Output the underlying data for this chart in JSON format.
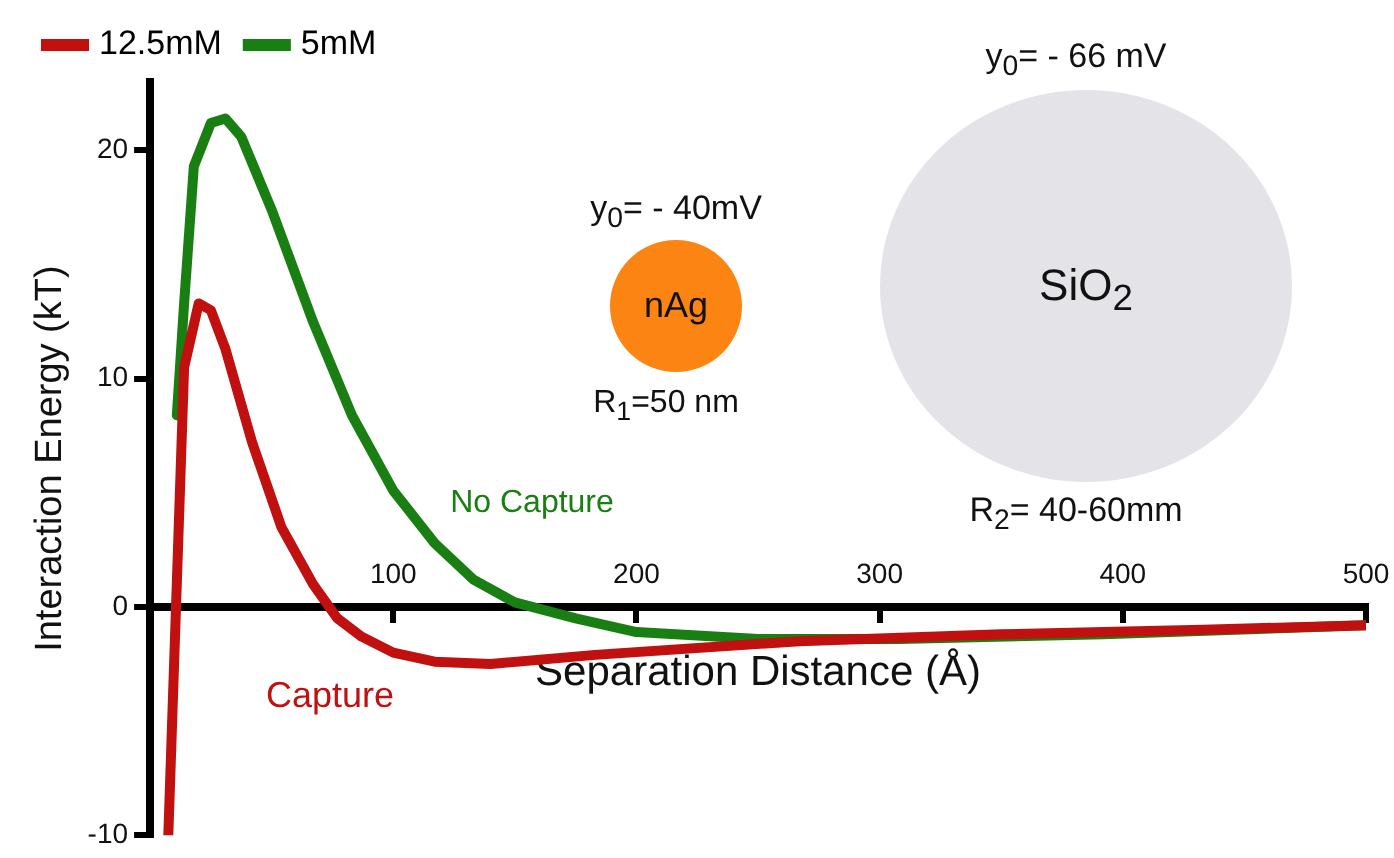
{
  "chart_data": {
    "type": "line",
    "xlabel": "Separation Distance (Å)",
    "ylabel": "Interaction Energy (kT)",
    "xlim": [
      0,
      500
    ],
    "xticks": [
      100,
      200,
      300,
      400,
      500
    ],
    "ylim": [
      -10,
      23
    ],
    "yticks": [
      -10,
      0,
      10,
      20
    ],
    "grid": false,
    "legend": "top",
    "marker": "none",
    "line_style": "solid",
    "series": [
      {
        "name": "12.5mM",
        "color": "#c0100f",
        "x": [
          7.5,
          14,
          20,
          25,
          31,
          42,
          54,
          67,
          77,
          87,
          100,
          117,
          140,
          183,
          267,
          350,
          433,
          500
        ],
        "values": [
          -10,
          10.5,
          13.3,
          13,
          11.3,
          7.2,
          3.5,
          1,
          -0.5,
          -1.3,
          -2,
          -2.4,
          -2.5,
          -2.1,
          -1.5,
          -1.2,
          -1,
          -0.8
        ]
      },
      {
        "name": "5mM",
        "color": "#1a7f12",
        "x": [
          11,
          14,
          18,
          25,
          31,
          37.5,
          50,
          67,
          83,
          100,
          117,
          133,
          150,
          175,
          200,
          250,
          308,
          392,
          500
        ],
        "values": [
          8.4,
          13.3,
          19.3,
          21.2,
          21.4,
          20.6,
          17.4,
          12.5,
          8.4,
          5.1,
          2.8,
          1.2,
          0.2,
          -0.5,
          -1.1,
          -1.4,
          -1.4,
          -1.2,
          -0.8
        ]
      }
    ],
    "annotations": [
      "No Capture",
      "Capture",
      "y$_{0}$= - 40mV",
      "nAg",
      "R$_{1}$=50 nm",
      "y$_{0}$= - 66 mV",
      "SiO$_{2}$",
      "R$_{2}$= 40-60mm"
    ]
  }
}
